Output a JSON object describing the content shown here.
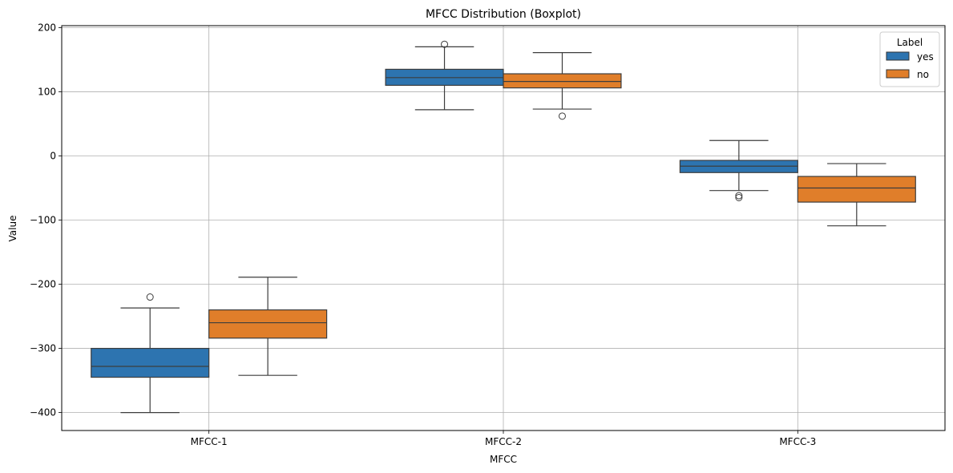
{
  "chart_data": {
    "type": "boxplot",
    "title": "MFCC Distribution (Boxplot)",
    "xlabel": "MFCC",
    "ylabel": "Value",
    "ylim": [
      -428,
      203
    ],
    "yticks": [
      200,
      100,
      0,
      -100,
      -200,
      -300,
      -400
    ],
    "ytick_labels": [
      "200",
      "100",
      "0",
      "−100",
      "−200",
      "−300",
      "−400"
    ],
    "grid": true,
    "categories": [
      "MFCC-1",
      "MFCC-2",
      "MFCC-3"
    ],
    "legend": {
      "title": "Label",
      "position": "top-right"
    },
    "series": [
      {
        "name": "yes",
        "color": "#2d74b0",
        "boxes": [
          {
            "whisker_low": -400,
            "q1": -345,
            "median": -328,
            "q3": -300,
            "whisker_high": -237,
            "outliers": [
              -220
            ]
          },
          {
            "whisker_low": 72,
            "q1": 110,
            "median": 122,
            "q3": 135,
            "whisker_high": 170,
            "outliers": [
              174
            ]
          },
          {
            "whisker_low": -54,
            "q1": -26,
            "median": -16,
            "q3": -7,
            "whisker_high": 24,
            "outliers": [
              -62,
              -65
            ]
          }
        ]
      },
      {
        "name": "no",
        "color": "#e07e2a",
        "boxes": [
          {
            "whisker_low": -342,
            "q1": -284,
            "median": -260,
            "q3": -240,
            "whisker_high": -189,
            "outliers": []
          },
          {
            "whisker_low": 73,
            "q1": 106,
            "median": 116,
            "q3": 128,
            "whisker_high": 161,
            "outliers": [
              62
            ]
          },
          {
            "whisker_low": -109,
            "q1": -72,
            "median": -50,
            "q3": -32,
            "whisker_high": -12,
            "outliers": []
          }
        ]
      }
    ]
  }
}
